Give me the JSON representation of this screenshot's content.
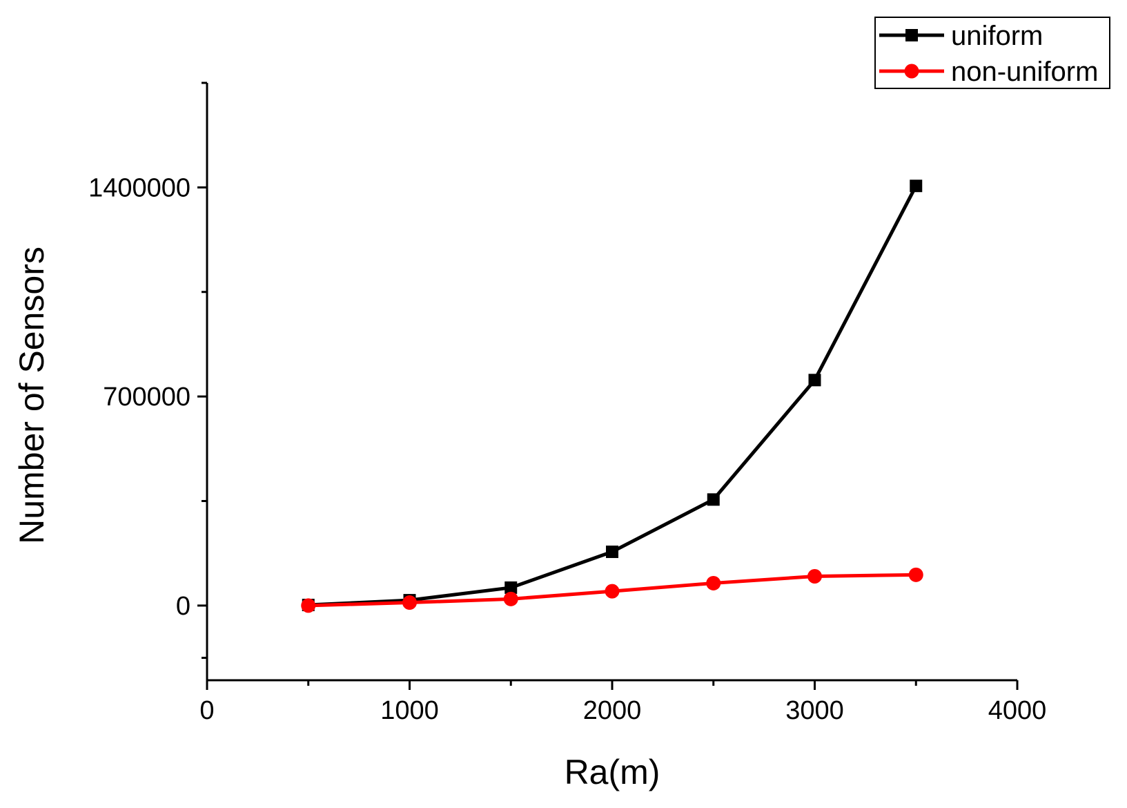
{
  "chart_data": {
    "type": "line",
    "title": "",
    "xlabel": "Ra(m)",
    "ylabel": "Number of Sensors",
    "xlim": [
      0,
      4000
    ],
    "ylim": [
      -250000,
      1750000
    ],
    "x_ticks": [
      0,
      1000,
      2000,
      3000,
      4000
    ],
    "x_tick_labels": [
      "0",
      "1000",
      "2000",
      "3000",
      "4000"
    ],
    "y_ticks": [
      0,
      700000,
      1400000
    ],
    "y_tick_labels": [
      "0",
      "700000",
      "1400000"
    ],
    "y_minor_ticks": [
      -175000,
      350000,
      1050000,
      1750000
    ],
    "grid": false,
    "legend_position": "top-right",
    "series": [
      {
        "name": "uniform",
        "color": "#000000",
        "marker": "square",
        "x": [
          500,
          1000,
          1500,
          2000,
          2500,
          3000,
          3500
        ],
        "values": [
          2000,
          18000,
          60000,
          180000,
          355000,
          755000,
          1405000
        ]
      },
      {
        "name": "non-uniform",
        "color": "#ff0000",
        "marker": "circle",
        "x": [
          500,
          1000,
          1500,
          2000,
          2500,
          3000,
          3500
        ],
        "values": [
          0,
          10000,
          22000,
          48000,
          75000,
          98000,
          103000
        ]
      }
    ]
  }
}
